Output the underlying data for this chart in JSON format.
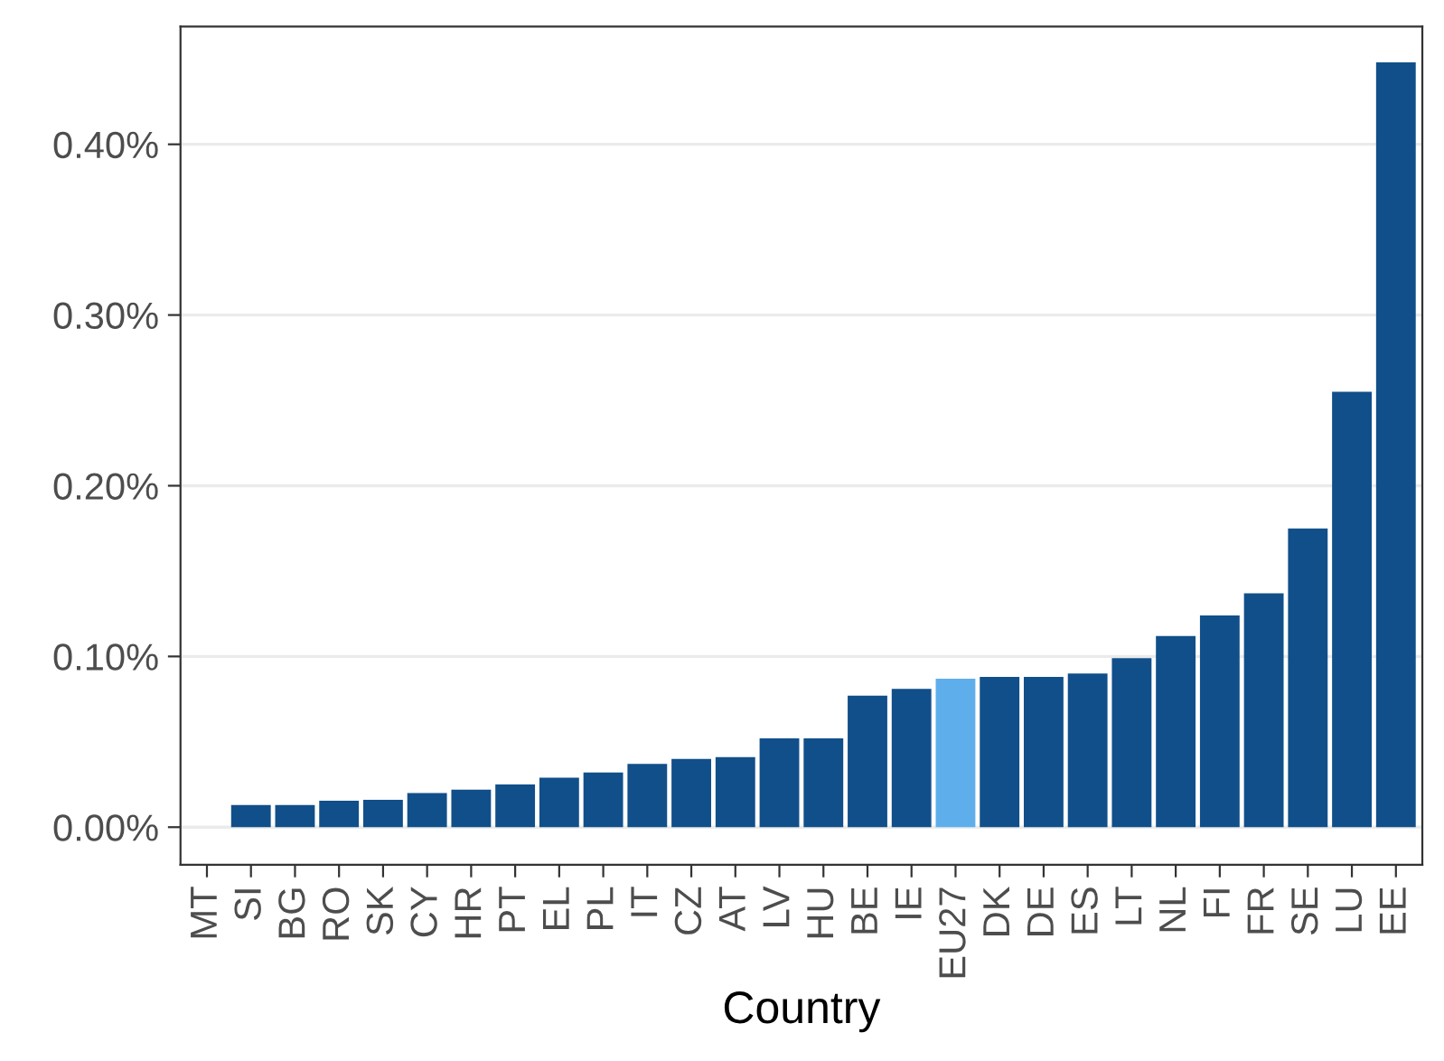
{
  "chart_data": {
    "type": "bar",
    "xlabel": "Country",
    "categories": [
      "MT",
      "SI",
      "BG",
      "RO",
      "SK",
      "CY",
      "HR",
      "PT",
      "EL",
      "PL",
      "IT",
      "CZ",
      "AT",
      "LV",
      "HU",
      "BE",
      "IE",
      "EU27",
      "DK",
      "DE",
      "ES",
      "LT",
      "NL",
      "FI",
      "FR",
      "SE",
      "LU",
      "EE"
    ],
    "values": [
      0,
      0.013,
      0.013,
      0.0155,
      0.016,
      0.02,
      0.022,
      0.025,
      0.029,
      0.032,
      0.037,
      0.04,
      0.041,
      0.052,
      0.052,
      0.077,
      0.081,
      0.087,
      0.088,
      0.088,
      0.09,
      0.099,
      0.112,
      0.124,
      0.137,
      0.175,
      0.255,
      0.448
    ],
    "colors": [
      "#114f8a",
      "#114f8a",
      "#114f8a",
      "#114f8a",
      "#114f8a",
      "#114f8a",
      "#114f8a",
      "#114f8a",
      "#114f8a",
      "#114f8a",
      "#114f8a",
      "#114f8a",
      "#114f8a",
      "#114f8a",
      "#114f8a",
      "#114f8a",
      "#114f8a",
      "#5eaeec",
      "#114f8a",
      "#114f8a",
      "#114f8a",
      "#114f8a",
      "#114f8a",
      "#114f8a",
      "#114f8a",
      "#114f8a",
      "#114f8a",
      "#114f8a"
    ],
    "ylim": [
      -0.022,
      0.469
    ],
    "yticks": [
      {
        "value": 0,
        "label": "0.00%"
      },
      {
        "value": 0.1,
        "label": "0.10%"
      },
      {
        "value": 0.2,
        "label": "0.20%"
      },
      {
        "value": 0.3,
        "label": "0.30%"
      },
      {
        "value": 0.4,
        "label": "0.40%"
      }
    ],
    "grid": "y"
  }
}
